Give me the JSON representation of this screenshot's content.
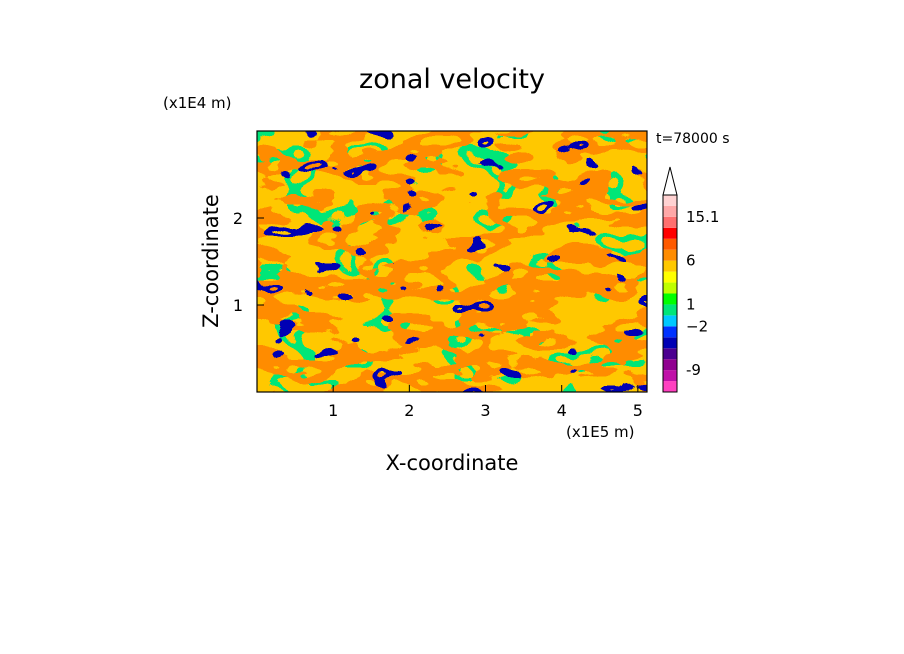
{
  "chart_data": {
    "type": "heatmap",
    "title": "zonal velocity",
    "xlabel": "X-coordinate",
    "ylabel": "Z-coordinate",
    "x_unit": "(x1E5 m)",
    "y_unit": "(x1E4 m)",
    "time_label": "t=78000 s",
    "xlim": [
      0,
      5.12
    ],
    "ylim": [
      0,
      3.0
    ],
    "x_ticks": [
      {
        "value": 1,
        "label": "1"
      },
      {
        "value": 2,
        "label": "2"
      },
      {
        "value": 3,
        "label": "3"
      },
      {
        "value": 4,
        "label": "4"
      },
      {
        "value": 5,
        "label": "5"
      }
    ],
    "y_ticks": [
      {
        "value": 1,
        "label": "1"
      },
      {
        "value": 2,
        "label": "2"
      }
    ],
    "colorbar": {
      "extend_max": true,
      "colors": [
        "#ff40c0",
        "#c010a8",
        "#900090",
        "#4b0090",
        "#0000b4",
        "#0032ff",
        "#00c8ff",
        "#00e678",
        "#00ff00",
        "#bfff00",
        "#ffff00",
        "#ffc800",
        "#ff8c00",
        "#ff5a00",
        "#ff0000",
        "#ff7070",
        "#ffa8a8",
        "#ffd2d2"
      ],
      "labels": [
        {
          "index": 2.0,
          "text": "-9"
        },
        {
          "index": 6.0,
          "text": "−2"
        },
        {
          "index": 8.0,
          "text": "1"
        },
        {
          "index": 12.0,
          "text": "6"
        },
        {
          "index": 16.0,
          "text": "15.1"
        }
      ]
    }
  }
}
